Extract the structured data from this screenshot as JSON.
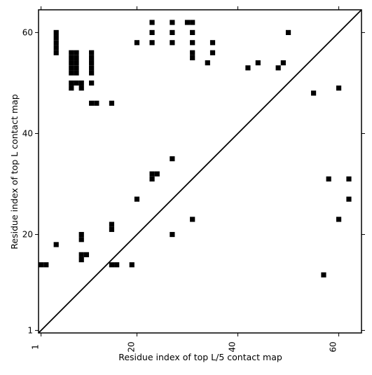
{
  "chart_data": {
    "type": "heatmap",
    "xlabel": "Residue index of top L/5 contact map",
    "ylabel": "Residue index of top L contact map",
    "xlim": [
      0.5,
      64.5
    ],
    "ylim": [
      0.5,
      64.5
    ],
    "x_ticks": [
      1,
      20,
      40,
      60
    ],
    "y_ticks": [
      1,
      20,
      40,
      60
    ],
    "x_tick_labels": [
      "1",
      "20",
      "40",
      "60"
    ],
    "y_tick_labels": [
      "1",
      "20",
      "40",
      "60"
    ],
    "diagonal": true,
    "grid": false,
    "cell_color": "#000000",
    "cells": [
      [
        4,
        60
      ],
      [
        4,
        59
      ],
      [
        4,
        58
      ],
      [
        4,
        57
      ],
      [
        4,
        56
      ],
      [
        7,
        56
      ],
      [
        8,
        56
      ],
      [
        7,
        55
      ],
      [
        8,
        55
      ],
      [
        7,
        54
      ],
      [
        8,
        54
      ],
      [
        7,
        53
      ],
      [
        8,
        53
      ],
      [
        7,
        52
      ],
      [
        8,
        52
      ],
      [
        11,
        56
      ],
      [
        11,
        55
      ],
      [
        11,
        54
      ],
      [
        11,
        53
      ],
      [
        11,
        52
      ],
      [
        7,
        50
      ],
      [
        8,
        50
      ],
      [
        9,
        50
      ],
      [
        7,
        49
      ],
      [
        9,
        49
      ],
      [
        11,
        50
      ],
      [
        11,
        46
      ],
      [
        12,
        46
      ],
      [
        15,
        46
      ],
      [
        20,
        58
      ],
      [
        23,
        62
      ],
      [
        23,
        60
      ],
      [
        23,
        58
      ],
      [
        27,
        62
      ],
      [
        27,
        60
      ],
      [
        27,
        58
      ],
      [
        30,
        62
      ],
      [
        31,
        62
      ],
      [
        31,
        60
      ],
      [
        31,
        58
      ],
      [
        31,
        56
      ],
      [
        31,
        55
      ],
      [
        35,
        58
      ],
      [
        35,
        56
      ],
      [
        34,
        54
      ],
      [
        42,
        53
      ],
      [
        44,
        54
      ],
      [
        48,
        53
      ],
      [
        49,
        54
      ],
      [
        50,
        60
      ],
      [
        55,
        48
      ],
      [
        60,
        49
      ],
      [
        27,
        35
      ],
      [
        23,
        32
      ],
      [
        24,
        32
      ],
      [
        23,
        31
      ],
      [
        20,
        27
      ],
      [
        4,
        18
      ],
      [
        9,
        20
      ],
      [
        9,
        19
      ],
      [
        9,
        16
      ],
      [
        10,
        16
      ],
      [
        9,
        15
      ],
      [
        15,
        22
      ],
      [
        15,
        21
      ],
      [
        15,
        14
      ],
      [
        16,
        14
      ],
      [
        19,
        14
      ],
      [
        1,
        14
      ],
      [
        2,
        14
      ],
      [
        27,
        20
      ],
      [
        31,
        23
      ],
      [
        58,
        31
      ],
      [
        62,
        31
      ],
      [
        62,
        27
      ],
      [
        60,
        23
      ],
      [
        57,
        12
      ]
    ]
  }
}
